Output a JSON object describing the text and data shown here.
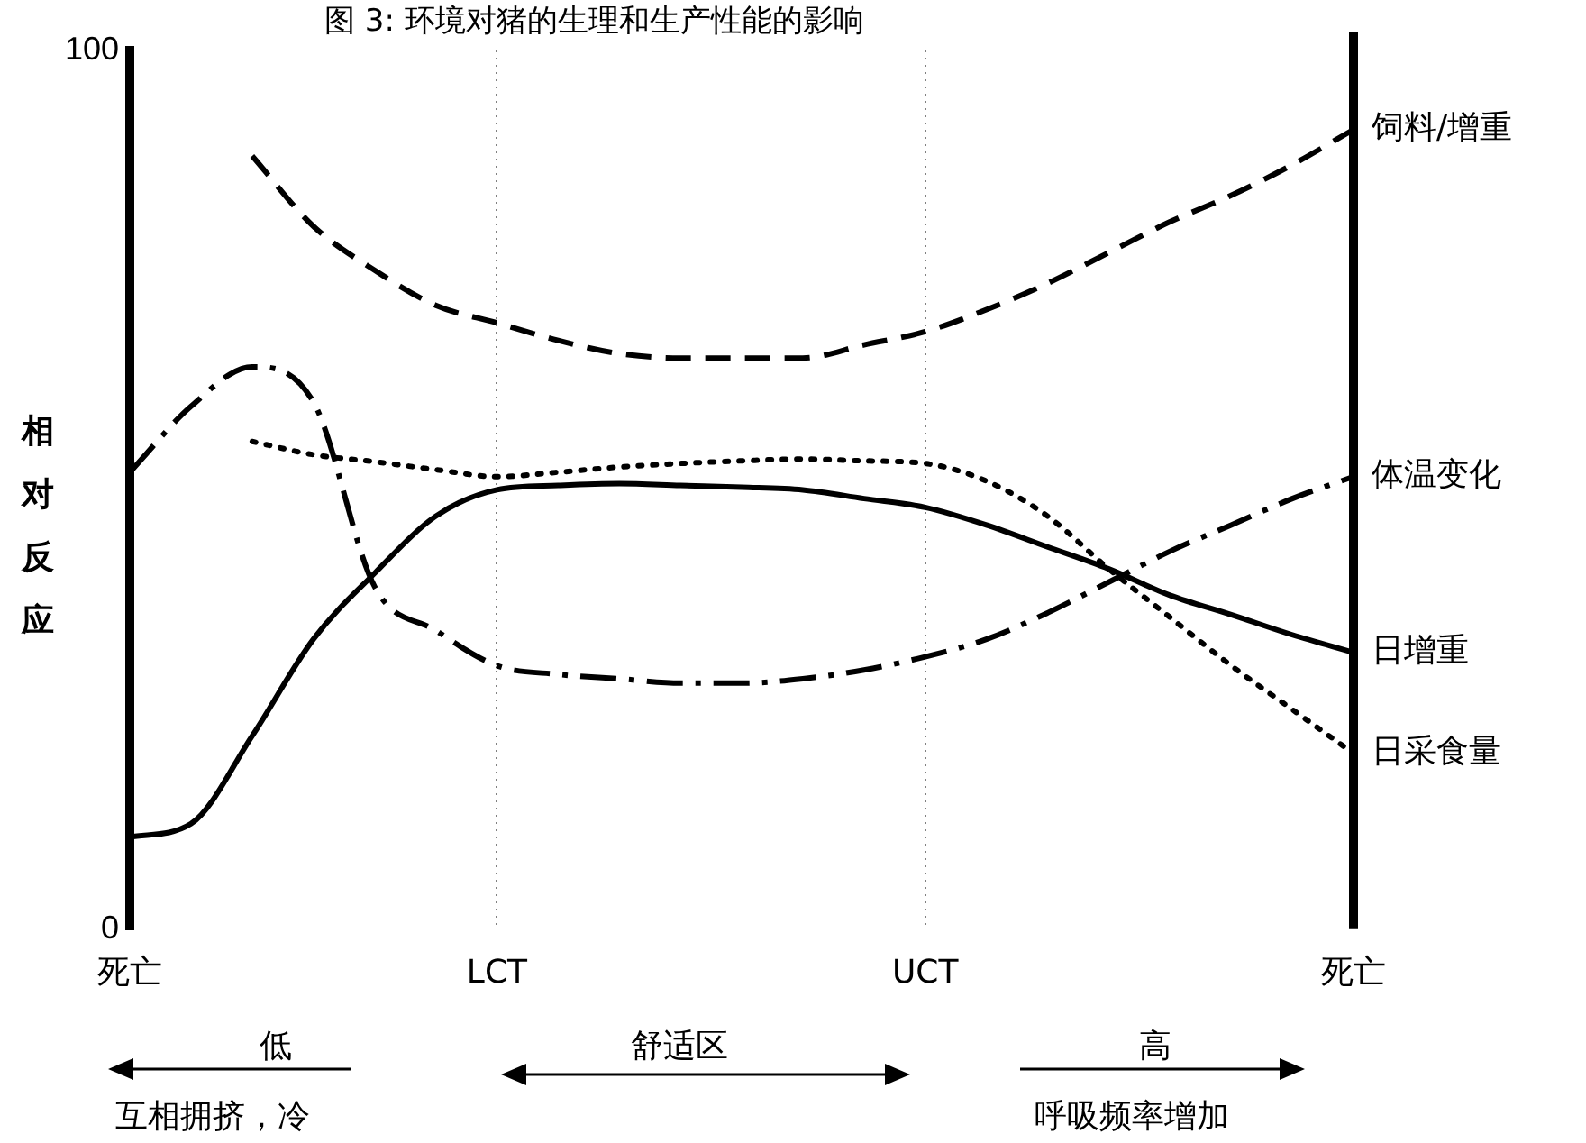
{
  "chart_data": {
    "type": "line",
    "title": "图 3: 环境对猪的生理和生产性能的影响",
    "ylabel": "相对反应",
    "categories": [
      "死亡",
      null,
      null,
      null,
      null,
      null,
      "LCT",
      null,
      null,
      null,
      null,
      null,
      null,
      "UCT",
      null,
      null,
      null,
      null,
      null,
      null,
      "死亡"
    ],
    "ylim": [
      0,
      100
    ],
    "yticks": [
      0,
      100
    ],
    "grid": "x",
    "legend": false,
    "marker": "none",
    "series": [
      {
        "name": "饲料/增重",
        "color": "#000000",
        "line_style": "dashed",
        "values": [
          null,
          null,
          88,
          80,
          75,
          71,
          69,
          67,
          65.5,
          65,
          65,
          65,
          66.5,
          68,
          70.5,
          73.5,
          77,
          80.5,
          83.5,
          87,
          91
        ]
      },
      {
        "name": "体温变化",
        "color": "#000000",
        "line_style": "dashdot",
        "values": [
          52,
          59.5,
          64,
          60,
          39,
          34,
          30,
          29,
          28.5,
          28,
          28,
          28.5,
          29.5,
          31,
          33,
          36,
          39.5,
          43,
          46,
          49,
          51.5
        ]
      },
      {
        "name": "日增重",
        "color": "#000000",
        "line_style": "solid",
        "values": [
          10.5,
          12,
          22,
          33,
          40.5,
          47,
          50,
          50.5,
          50.7,
          50.5,
          50.3,
          50,
          49,
          48,
          46,
          43.5,
          41,
          38,
          35.8,
          33.5,
          31.5
        ]
      },
      {
        "name": "日采食量",
        "color": "#000000",
        "line_style": "dotted",
        "values": [
          null,
          null,
          55.5,
          54,
          53.2,
          52.3,
          51.5,
          52,
          52.6,
          53,
          53.3,
          53.5,
          53.3,
          53,
          51,
          47,
          41,
          35.5,
          30,
          25,
          20
        ]
      }
    ],
    "annotations": [
      "低",
      "互相拥挤，冷",
      "舒适区",
      "高",
      "呼吸频率增加"
    ]
  }
}
